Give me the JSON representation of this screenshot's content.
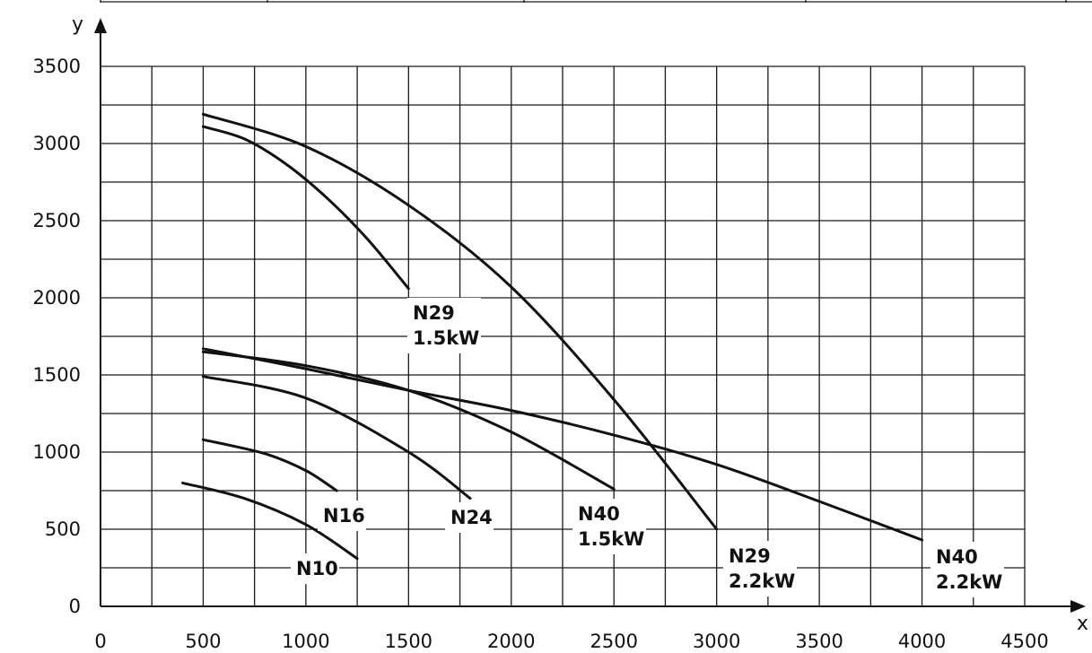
{
  "chart_data": {
    "type": "line",
    "xlabel": "x",
    "ylabel": "y",
    "xlim": [
      0,
      4500
    ],
    "ylim": [
      0,
      3500
    ],
    "x_grid_step": 250,
    "y_grid_step": 250,
    "x_ticks": [
      "0",
      "500",
      "1000",
      "1500",
      "2000",
      "2500",
      "3000",
      "3500",
      "4000",
      "4500"
    ],
    "y_ticks": [
      "0",
      "500",
      "1000",
      "1500",
      "2000",
      "2500",
      "3000",
      "3500"
    ],
    "grid": true,
    "series": [
      {
        "key": "n10",
        "label_lines": [
          "N10"
        ],
        "points": [
          [
            400,
            800
          ],
          [
            700,
            700
          ],
          [
            1000,
            530
          ],
          [
            1250,
            310
          ]
        ]
      },
      {
        "key": "n16",
        "label_lines": [
          "N16"
        ],
        "points": [
          [
            500,
            1080
          ],
          [
            800,
            990
          ],
          [
            1000,
            880
          ],
          [
            1150,
            750
          ]
        ]
      },
      {
        "key": "n24",
        "label_lines": [
          "N24"
        ],
        "points": [
          [
            500,
            1490
          ],
          [
            1000,
            1350
          ],
          [
            1500,
            1000
          ],
          [
            1800,
            700
          ]
        ]
      },
      {
        "key": "n40-15",
        "label_lines": [
          "N40",
          "1.5kW"
        ],
        "points": [
          [
            500,
            1650
          ],
          [
            1000,
            1560
          ],
          [
            1500,
            1400
          ],
          [
            2000,
            1130
          ],
          [
            2500,
            760
          ]
        ]
      },
      {
        "key": "n40-22",
        "label_lines": [
          "N40",
          "2.2kW"
        ],
        "points": [
          [
            500,
            1670
          ],
          [
            1000,
            1540
          ],
          [
            1500,
            1400
          ],
          [
            2000,
            1270
          ],
          [
            2500,
            1110
          ],
          [
            3000,
            920
          ],
          [
            3500,
            680
          ],
          [
            4000,
            430
          ]
        ]
      },
      {
        "key": "n29-15",
        "label_lines": [
          "N29",
          "1.5kW"
        ],
        "points": [
          [
            500,
            3110
          ],
          [
            700,
            3030
          ],
          [
            900,
            2870
          ],
          [
            1100,
            2650
          ],
          [
            1300,
            2380
          ],
          [
            1500,
            2060
          ]
        ]
      },
      {
        "key": "n29-22",
        "label_lines": [
          "N29",
          "2.2kW"
        ],
        "points": [
          [
            500,
            3190
          ],
          [
            1000,
            2980
          ],
          [
            1500,
            2600
          ],
          [
            2000,
            2070
          ],
          [
            2500,
            1340
          ],
          [
            3000,
            500
          ]
        ]
      }
    ]
  }
}
